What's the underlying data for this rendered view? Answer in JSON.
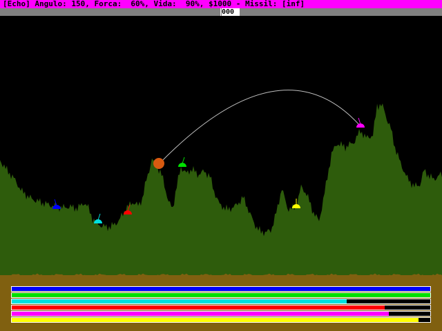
{
  "status": {
    "text": "[Echo] Angulo: 150, Forca:  60%, Vida:  90%, $1000 - Missil: [inf]",
    "bg_color": "#ff00ff"
  },
  "wind": {
    "value": "000"
  },
  "colors": {
    "sky": "#000000",
    "terrain": "#2e5c0c",
    "ground": "#806010",
    "trajectory": "#bfbfbf",
    "projectile": "#d85a10"
  },
  "tanks": [
    {
      "name": "blue",
      "color": "#0000ff",
      "health": 1.0
    },
    {
      "name": "green",
      "color": "#00e000",
      "health": 1.0
    },
    {
      "name": "cyan",
      "color": "#00e0e0",
      "health": 0.8
    },
    {
      "name": "red",
      "color": "#ff0000",
      "health": 0.89
    },
    {
      "name": "magenta",
      "color": "#ff00ff",
      "health": 0.9
    },
    {
      "name": "yellow",
      "color": "#ffff00",
      "health": 0.97
    }
  ]
}
